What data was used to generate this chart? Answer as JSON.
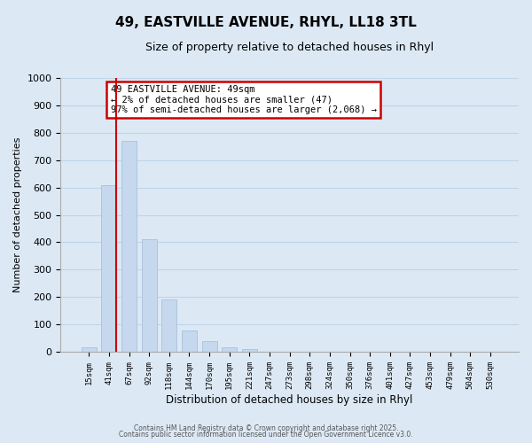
{
  "title": "49, EASTVILLE AVENUE, RHYL, LL18 3TL",
  "subtitle": "Size of property relative to detached houses in Rhyl",
  "xlabel": "Distribution of detached houses by size in Rhyl",
  "ylabel": "Number of detached properties",
  "bar_labels": [
    "15sqm",
    "41sqm",
    "67sqm",
    "92sqm",
    "118sqm",
    "144sqm",
    "170sqm",
    "195sqm",
    "221sqm",
    "247sqm",
    "273sqm",
    "298sqm",
    "324sqm",
    "350sqm",
    "376sqm",
    "401sqm",
    "427sqm",
    "453sqm",
    "479sqm",
    "504sqm",
    "530sqm"
  ],
  "bar_values": [
    15,
    610,
    770,
    410,
    192,
    77,
    40,
    15,
    10,
    0,
    0,
    0,
    0,
    0,
    0,
    0,
    0,
    0,
    0,
    0,
    0
  ],
  "bar_color": "#c5d8ee",
  "bar_edge_color": "#a8c0dc",
  "vline_color": "#cc0000",
  "annotation_text": "49 EASTVILLE AVENUE: 49sqm\n← 2% of detached houses are smaller (47)\n97% of semi-detached houses are larger (2,068) →",
  "annotation_box_facecolor": "#ffffff",
  "annotation_box_edgecolor": "#cc0000",
  "ylim": [
    0,
    1000
  ],
  "yticks": [
    0,
    100,
    200,
    300,
    400,
    500,
    600,
    700,
    800,
    900,
    1000
  ],
  "grid_color": "#c0d4e8",
  "bg_color": "#dce9f5",
  "footer1": "Contains HM Land Registry data © Crown copyright and database right 2025.",
  "footer2": "Contains public sector information licensed under the Open Government Licence v3.0."
}
